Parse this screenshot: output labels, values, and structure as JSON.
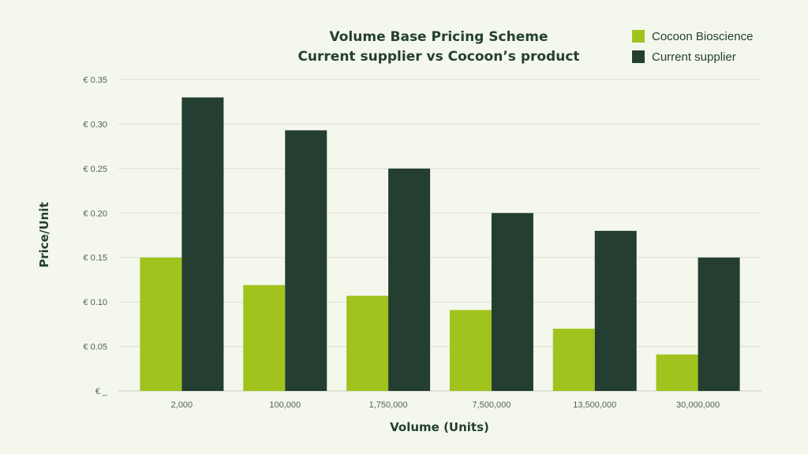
{
  "chart_data": {
    "type": "bar",
    "title": "Volume Base Pricing Scheme",
    "subtitle": "Current supplier vs Cocoon’s product",
    "xlabel": "Volume (Units)",
    "ylabel": "Price/Unit",
    "categories": [
      "2,000",
      "100,000",
      "1,750,000",
      "7,500,000",
      "13,500,000",
      "30,000,000"
    ],
    "series": [
      {
        "name": "Cocoon Bioscience",
        "color": "#a1c31e",
        "values": [
          0.15,
          0.119,
          0.107,
          0.091,
          0.07,
          0.041
        ]
      },
      {
        "name": "Current supplier",
        "color": "#243e31",
        "values": [
          0.33,
          0.293,
          0.25,
          0.2,
          0.18,
          0.15
        ]
      }
    ],
    "yticks": [
      0,
      0.05,
      0.1,
      0.15,
      0.2,
      0.25,
      0.3,
      0.35
    ],
    "ytick_labels": [
      "€ _",
      "€ 0.05",
      "€ 0.10",
      "€ 0.15",
      "€ 0.20",
      "€ 0.25",
      "€ 0.30",
      "€ 0.35"
    ],
    "ylim": [
      0,
      0.35
    ],
    "grid": true,
    "legend_position": "top-right"
  }
}
